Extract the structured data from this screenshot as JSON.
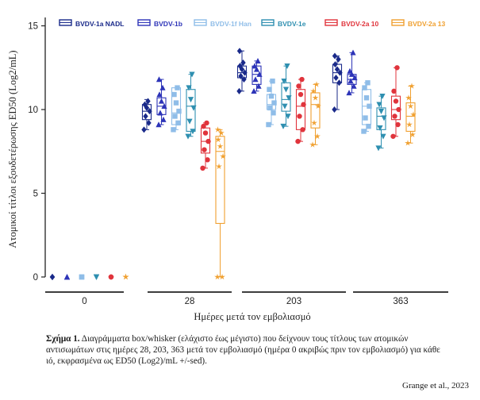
{
  "chart_data": {
    "type": "box",
    "title": "",
    "ylabel": "Ατομικοί τίτλοι εξουδετέρωσης ED50 (Log2/mL)",
    "xlabel": "Ημέρες μετά τον εμβολιασμό",
    "ylim": [
      0,
      15.5
    ],
    "yticks": [
      "0",
      "5",
      "10",
      "15"
    ],
    "ytick_values": [
      0,
      5,
      10,
      15
    ],
    "groups": [
      "0",
      "28",
      "203",
      "363"
    ],
    "series": [
      {
        "name": "BVDV-1a NADL",
        "color": "#1a2a8a",
        "marker": "diamond",
        "boxes": [
          {
            "min": 0,
            "q1": 0,
            "median": 0,
            "q3": 0,
            "max": 0,
            "points": [
              0,
              0,
              0
            ]
          },
          {
            "min": 8.8,
            "q1": 9.4,
            "median": 9.9,
            "q3": 10.3,
            "max": 10.6,
            "points": [
              8.8,
              9.2,
              9.6,
              9.9,
              10.1,
              10.3,
              10.5
            ]
          },
          {
            "min": 11.1,
            "q1": 11.9,
            "median": 12.2,
            "q3": 12.6,
            "max": 13.5,
            "points": [
              11.1,
              11.8,
              12.0,
              12.2,
              12.4,
              12.6,
              12.8,
              13.5
            ]
          },
          {
            "min": 10.0,
            "q1": 11.6,
            "median": 12.2,
            "q3": 12.7,
            "max": 13.2,
            "points": [
              10.0,
              11.6,
              11.9,
              12.2,
              12.4,
              12.7,
              13.0,
              13.2
            ]
          }
        ]
      },
      {
        "name": "BVDV-1b",
        "color": "#2d34b8",
        "marker": "triangle",
        "boxes": [
          {
            "min": 0,
            "q1": 0,
            "median": 0,
            "q3": 0,
            "max": 0,
            "points": [
              0,
              0,
              0
            ]
          },
          {
            "min": 9.1,
            "q1": 9.7,
            "median": 10.2,
            "q3": 10.7,
            "max": 11.8,
            "points": [
              9.1,
              9.4,
              9.8,
              10.2,
              10.5,
              10.9,
              11.3,
              11.8
            ]
          },
          {
            "min": 11.1,
            "q1": 11.5,
            "median": 12.1,
            "q3": 12.6,
            "max": 12.9,
            "points": [
              11.1,
              11.4,
              11.8,
              12.1,
              12.4,
              12.6,
              12.9
            ]
          },
          {
            "min": 11.0,
            "q1": 11.5,
            "median": 11.8,
            "q3": 12.1,
            "max": 13.4,
            "points": [
              11.0,
              11.4,
              11.7,
              11.9,
              12.1,
              12.3,
              13.4
            ]
          }
        ]
      },
      {
        "name": "BVDV-1f Han",
        "color": "#8fbde8",
        "marker": "square",
        "boxes": [
          {
            "min": 0,
            "q1": 0,
            "median": 0,
            "q3": 0,
            "max": 0,
            "points": [
              0,
              0,
              0
            ]
          },
          {
            "min": 8.8,
            "q1": 9.1,
            "median": 9.8,
            "q3": 11.3,
            "max": 11.3,
            "points": [
              8.8,
              9.2,
              9.6,
              9.9,
              10.4,
              10.9,
              11.3
            ]
          },
          {
            "min": 9.1,
            "q1": 10.0,
            "median": 10.3,
            "q3": 10.9,
            "max": 11.7,
            "points": [
              9.1,
              9.8,
              10.1,
              10.4,
              10.8,
              11.2,
              11.7
            ]
          },
          {
            "min": 8.7,
            "q1": 9.1,
            "median": 10.2,
            "q3": 11.2,
            "max": 11.6,
            "points": [
              8.7,
              9.0,
              9.5,
              10.2,
              10.7,
              11.3,
              11.6
            ]
          }
        ]
      },
      {
        "name": "BVDV-1e",
        "color": "#2e8fb0",
        "marker": "triangle-down",
        "boxes": [
          {
            "min": 0,
            "q1": 0,
            "median": 0,
            "q3": 0,
            "max": 0,
            "points": [
              0,
              0,
              0
            ]
          },
          {
            "min": 8.4,
            "q1": 8.7,
            "median": 10.2,
            "q3": 11.2,
            "max": 12.1,
            "points": [
              8.4,
              8.7,
              9.3,
              10.1,
              10.6,
              11.3,
              12.1
            ]
          },
          {
            "min": 9.0,
            "q1": 9.9,
            "median": 10.6,
            "q3": 11.6,
            "max": 12.6,
            "points": [
              9.0,
              9.6,
              10.2,
              10.7,
              11.2,
              11.7,
              12.6
            ]
          },
          {
            "min": 7.7,
            "q1": 8.8,
            "median": 9.6,
            "q3": 10.1,
            "max": 10.8,
            "points": [
              7.7,
              8.4,
              8.9,
              9.5,
              9.9,
              10.3,
              10.8
            ]
          }
        ]
      },
      {
        "name": "BVDV-2a 10",
        "color": "#e0343c",
        "marker": "circle",
        "boxes": [
          {
            "min": 0,
            "q1": 0,
            "median": 0,
            "q3": 0,
            "max": 0,
            "points": [
              0,
              0,
              0
            ]
          },
          {
            "min": 6.5,
            "q1": 7.4,
            "median": 8.1,
            "q3": 8.9,
            "max": 9.2,
            "points": [
              6.5,
              7.0,
              7.6,
              8.1,
              8.6,
              9.0,
              9.2
            ]
          },
          {
            "min": 8.1,
            "q1": 8.8,
            "median": 10.2,
            "q3": 11.2,
            "max": 11.8,
            "points": [
              8.1,
              8.8,
              9.6,
              10.3,
              10.9,
              11.4,
              11.8
            ]
          },
          {
            "min": 8.4,
            "q1": 9.4,
            "median": 10.0,
            "q3": 10.8,
            "max": 12.5,
            "points": [
              8.4,
              9.1,
              9.6,
              10.0,
              10.5,
              11.1,
              12.5
            ]
          }
        ]
      },
      {
        "name": "BVDV-2a 13",
        "color": "#f0a030",
        "marker": "star",
        "boxes": [
          {
            "min": 0,
            "q1": 0,
            "median": 0,
            "q3": 0,
            "max": 0,
            "points": [
              0,
              0,
              0
            ]
          },
          {
            "min": 0,
            "q1": 3.2,
            "median": 7.5,
            "q3": 8.4,
            "max": 8.8,
            "points": [
              0,
              0,
              6.6,
              7.2,
              7.8,
              8.2,
              8.6,
              8.8
            ]
          },
          {
            "min": 7.9,
            "q1": 8.9,
            "median": 10.3,
            "q3": 11.0,
            "max": 11.5,
            "points": [
              7.9,
              8.4,
              9.2,
              10.2,
              10.7,
              11.1,
              11.5
            ]
          },
          {
            "min": 8.0,
            "q1": 8.7,
            "median": 9.6,
            "q3": 10.4,
            "max": 11.4,
            "points": [
              8.0,
              8.5,
              9.1,
              9.7,
              10.2,
              10.7,
              11.4
            ]
          }
        ]
      }
    ]
  },
  "caption": {
    "label": "Σχήμα 1.",
    "text": " Διαγράμματα box/whisker (ελάχιστο έως μέγιστο) που δείχνουν τους τίτλους των ατομικών αντισωμάτων στις ημέρες 28, 203, 363 μετά τον εμβολιασμό (ημέρα 0 ακριβώς πριν τον εμβολιασμό) για κάθε ιό, εκφρασμένα ως ED50 (Log2)/mL +/-sed)."
  },
  "credit": "Grange et al., 2023"
}
